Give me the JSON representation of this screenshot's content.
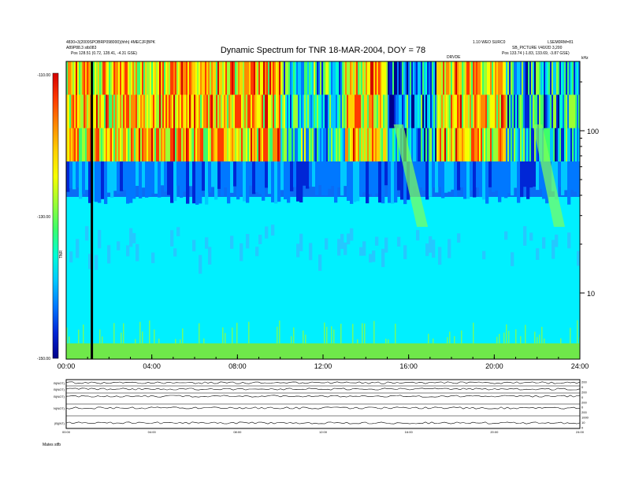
{
  "header": {
    "title": "Dynamic Spectrum for TNR 18-MAR-2004, DOY = 78",
    "top_left_line1": "4830+3(2009SPOBRP098000)(hhh) 4MECJF{BPK",
    "top_left_line2": "A89P88.3 stb083",
    "top_left_line3": "Pos  128.51 (0.72, 128.41, -4.31 GSE)",
    "top_right_line1": "1.10 WEO SURC0",
    "top_right_line2": "LSEM0RM=81",
    "top_right_line3": "SB_PICTURE V40/2D 3,200",
    "top_right_line4": "Pos  133.74 (-1.83, 133.69, -3.87 GSE)",
    "marker_label": "DRVDE"
  },
  "colorbar": {
    "axis_label": "TNR",
    "ticks": [
      "-110.00",
      "-130.00",
      "-150.00"
    ],
    "stops": [
      "#d40000",
      "#ff3b00",
      "#ff8a00",
      "#ffd100",
      "#f5ff00",
      "#9cff33",
      "#3cff6a",
      "#00ffd5",
      "#00c8ff",
      "#0078ff",
      "#0026d6",
      "#00008a"
    ]
  },
  "chart_data": {
    "type": "heatmap",
    "title": "Dynamic Spectrum for TNR 18-MAR-2004, DOY = 78",
    "x_tick_labels": [
      "00:00",
      "04:00",
      "08:00",
      "12:00",
      "16:00",
      "20:00",
      "24:00"
    ],
    "x_range_hours": [
      0,
      24
    ],
    "y_scale": "log",
    "y_unit_label": "kHz",
    "y_tick_labels": [
      "100",
      "10"
    ],
    "y_tick_values": [
      100,
      10
    ],
    "colorbar_range": [
      -150,
      -110
    ],
    "features": [
      {
        "type": "data_gap_line",
        "time_hours": 1.2,
        "color": "#000000"
      },
      {
        "type": "sweep",
        "start_hours": 15.3,
        "end_hours": 16.9
      },
      {
        "type": "sweep",
        "start_hours": 21.8,
        "end_hours": 23.3
      }
    ]
  },
  "lower_panels": {
    "left_labels": [
      "B(NOT)",
      "B(NOT)",
      "B(NOT)",
      "N(NOT)",
      "|B|(NT)"
    ],
    "right_labels": [
      "200",
      "0",
      "200",
      "0",
      "200",
      "0",
      "200",
      "1000",
      "10",
      "0"
    ],
    "x_tick_labels": [
      "00:00",
      "04:00",
      "08:00",
      "12:00",
      "16:00",
      "20:00",
      "24:00"
    ],
    "footer_label": "Mates   stfb"
  }
}
